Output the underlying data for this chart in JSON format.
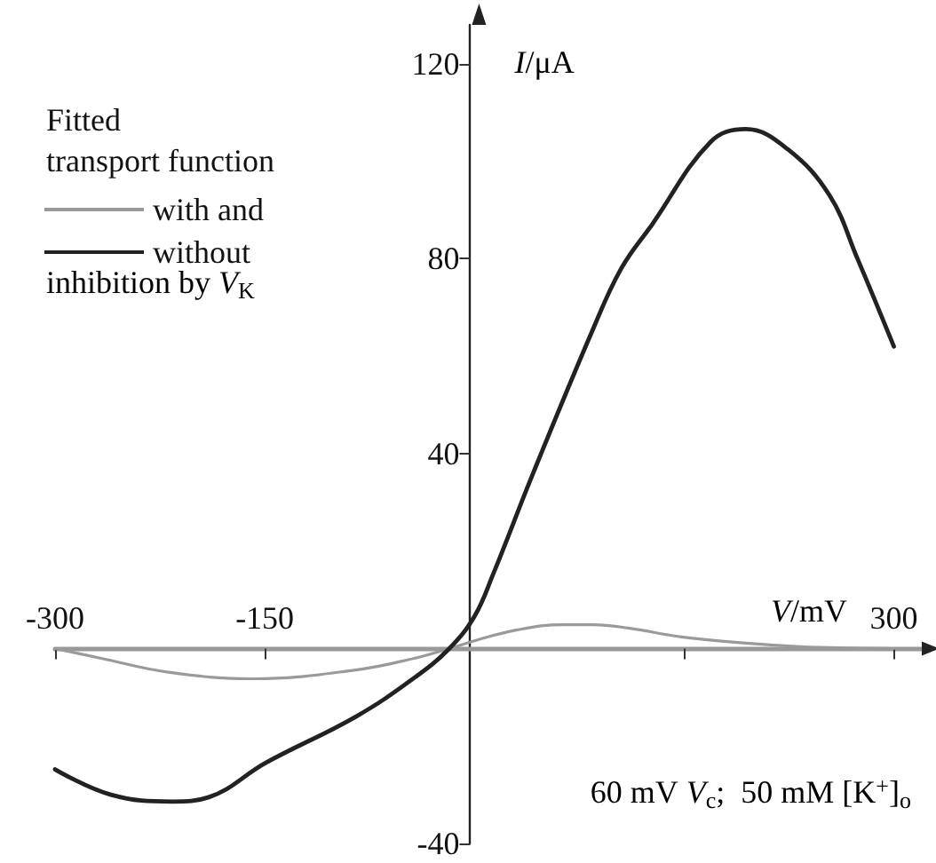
{
  "chart_data": {
    "type": "line",
    "xlabel": "V/mV",
    "ylabel": "I/μA",
    "legend_title": "Fitted transport function",
    "annotations": [
      "inhibition by V$_{K}$",
      "60 mV V$_{c}$;  50 mM [K$^{+}$]$_{o}$"
    ],
    "series": [
      {
        "name": "with and",
        "color": "#9a9a9a",
        "x": [
          -300,
          -267,
          -220,
          -158,
          -85,
          -43,
          -18,
          0,
          30,
          63,
          85,
          110,
          148,
          190,
          233,
          270,
          300
        ],
        "values": [
          0,
          -2,
          -4.8,
          -6.2,
          -4.4,
          -2,
          0,
          1.6,
          3.8,
          4.9,
          4.9,
          4.2,
          2.4,
          1.2,
          0.4,
          0.1,
          0
        ]
      },
      {
        "name": "without",
        "color": "#222222",
        "x": [
          -300,
          -260,
          -216,
          -190,
          -149,
          -85,
          -43,
          -18,
          0,
          13,
          42,
          84,
          105,
          127,
          169,
          194,
          224,
          254,
          274,
          300
        ],
        "values": [
          -24.8,
          -30,
          -31.4,
          -30.5,
          -23.4,
          -14,
          -6,
          0,
          6.6,
          15,
          36,
          65,
          78,
          87,
          104,
          106.6,
          102.5,
          93,
          80,
          62
        ]
      }
    ],
    "xlim": [
      -300,
      320
    ],
    "xticks": [
      -300,
      -150,
      {
        "value": 150,
        "label": null
      },
      300
    ],
    "ylim": [
      -40,
      128
    ],
    "yticks": [
      -40,
      40,
      80,
      120
    ],
    "legend": "top left",
    "grid": false,
    "marker": "none",
    "line_style": "solid"
  }
}
